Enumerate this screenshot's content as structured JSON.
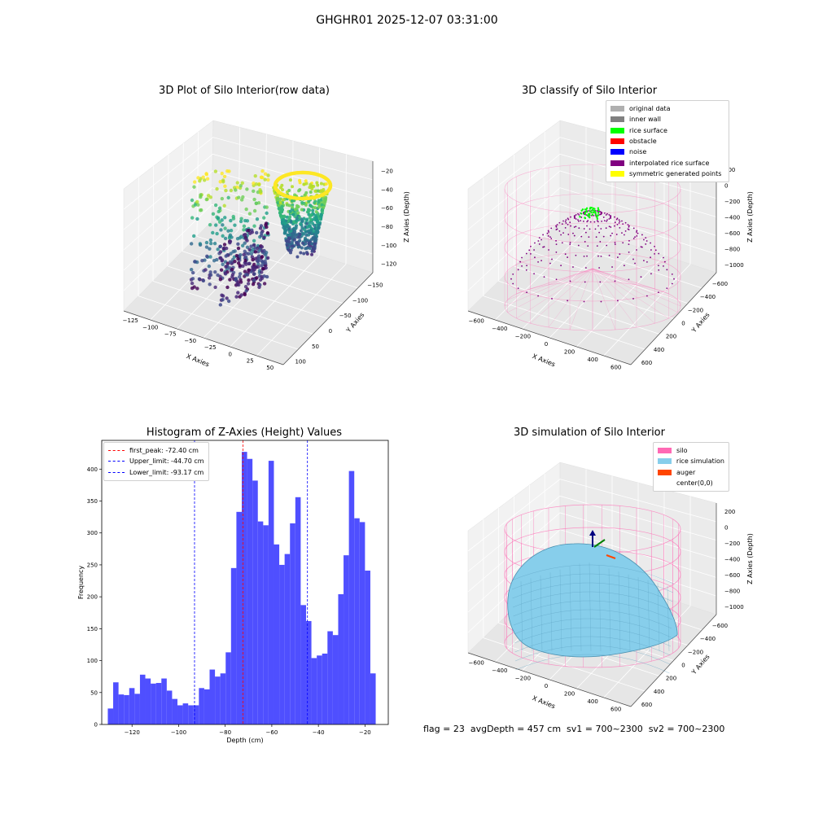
{
  "figure_title": "GHGHR01 2025-12-07 03:31:00",
  "panels": {
    "raw": {
      "title": "3D Plot of Silo Interior(row data)",
      "xlabel": "X Axies",
      "ylabel": "Y Axies",
      "zlabel": "Z Axies (Depth)",
      "x_ticks": [
        "−125",
        "−100",
        "−75",
        "−50",
        "−25",
        "0",
        "25",
        "50"
      ],
      "y_ticks": [
        "−150",
        "−100",
        "−50",
        "0",
        "50",
        "100"
      ],
      "z_ticks": [
        "−120",
        "−100",
        "−80",
        "−60",
        "−40",
        "−20"
      ]
    },
    "classify": {
      "title": "3D classify of Silo Interior",
      "xlabel": "X Axies",
      "ylabel": "Y Axies",
      "zlabel": "Z Axies (Depth)",
      "x_ticks": [
        "−600",
        "−400",
        "−200",
        "0",
        "200",
        "400",
        "600"
      ],
      "y_ticks": [
        "−600",
        "−400",
        "−200",
        "0",
        "200",
        "400",
        "600"
      ],
      "z_ticks": [
        "−1000",
        "−800",
        "−600",
        "−400",
        "−200",
        "0",
        "200"
      ],
      "legend": [
        {
          "label": "original data",
          "color": "#b0b0b0"
        },
        {
          "label": "inner wall",
          "color": "#808080"
        },
        {
          "label": "rice surface",
          "color": "#00ff00"
        },
        {
          "label": "obstacle",
          "color": "#ff0000"
        },
        {
          "label": "noise",
          "color": "#0000ff"
        },
        {
          "label": "interpolated rice surface",
          "color": "#800080"
        },
        {
          "label": "symmetric generated points",
          "color": "#ffff00"
        }
      ]
    },
    "simulation": {
      "title": "3D simulation of Silo Interior",
      "xlabel": "X Axies",
      "ylabel": "Y Axies",
      "zlabel": "Z Axies (Depth)",
      "x_ticks": [
        "−600",
        "−400",
        "−200",
        "0",
        "200",
        "400",
        "600"
      ],
      "y_ticks": [
        "−600",
        "−400",
        "−200",
        "0",
        "200",
        "400",
        "600"
      ],
      "z_ticks": [
        "−1000",
        "−800",
        "−600",
        "−400",
        "−200",
        "0",
        "200"
      ],
      "legend": [
        {
          "label": "silo",
          "color": "#ff69b4"
        },
        {
          "label": "rice simulation",
          "color": "#87ceeb"
        },
        {
          "label": "auger",
          "color": "#ff4500"
        },
        {
          "label": "center(0,0)",
          "color": ""
        }
      ]
    }
  },
  "colors": {
    "hist_bar": "#4b4bff",
    "peak_line": "#ff0000",
    "limit_line": "#0000ff",
    "silo_pink": "#ff69b4",
    "rice_blue": "#87ceeb"
  },
  "footer": "flag = 23  avgDepth = 457 cm  sv1 = 700~2300  sv2 = 700~2300",
  "chart_data": [
    {
      "type": "scatter",
      "title": "3D Plot of Silo Interior(row data)",
      "xlabel": "X Axies",
      "ylabel": "Y Axies",
      "zlabel": "Z Axies (Depth)",
      "xlim": [
        -130,
        55
      ],
      "ylim": [
        -160,
        110
      ],
      "zlim": [
        -135,
        -15
      ]
    },
    {
      "type": "scatter",
      "title": "3D classify of Silo Interior",
      "xlabel": "X Axies",
      "ylabel": "Y Axies",
      "zlabel": "Z Axies (Depth)",
      "xlim": [
        -700,
        700
      ],
      "ylim": [
        -700,
        700
      ],
      "zlim": [
        -1100,
        300
      ]
    },
    {
      "type": "histogram",
      "title": "Histogram of Z-Axies (Height) Values",
      "xlabel": "Depth (cm)",
      "ylabel": "Frequency",
      "xlim": [
        -133,
        -10
      ],
      "ylim": [
        0,
        445
      ],
      "x_ticks": [
        -120,
        -100,
        -80,
        -60,
        -40,
        -20
      ],
      "y_ticks": [
        0,
        50,
        100,
        150,
        200,
        250,
        300,
        350,
        400
      ],
      "bin_start": -130.4,
      "bin_width": 2.3,
      "values": [
        25,
        66,
        47,
        46,
        57,
        48,
        78,
        72,
        64,
        65,
        72,
        53,
        40,
        30,
        33,
        30,
        30,
        57,
        55,
        86,
        75,
        80,
        113,
        245,
        333,
        427,
        416,
        382,
        318,
        312,
        413,
        282,
        250,
        267,
        315,
        356,
        187,
        162,
        104,
        108,
        111,
        146,
        140,
        204,
        265,
        397,
        323,
        317,
        241,
        80
      ],
      "reference_lines": [
        {
          "label": "first_peak: -72.40 cm",
          "x": -72.4,
          "color": "#ff0000"
        },
        {
          "label": "Upper_limit: -44.70 cm",
          "x": -44.7,
          "color": "#0000ff"
        },
        {
          "label": "Lower_limit: -93.17 cm",
          "x": -93.17,
          "color": "#0000ff"
        }
      ]
    },
    {
      "type": "surface",
      "title": "3D simulation of Silo Interior",
      "xlabel": "X Axies",
      "ylabel": "Y Axies",
      "zlabel": "Z Axies (Depth)",
      "xlim": [
        -700,
        700
      ],
      "ylim": [
        -700,
        700
      ],
      "zlim": [
        -1100,
        300
      ]
    }
  ]
}
